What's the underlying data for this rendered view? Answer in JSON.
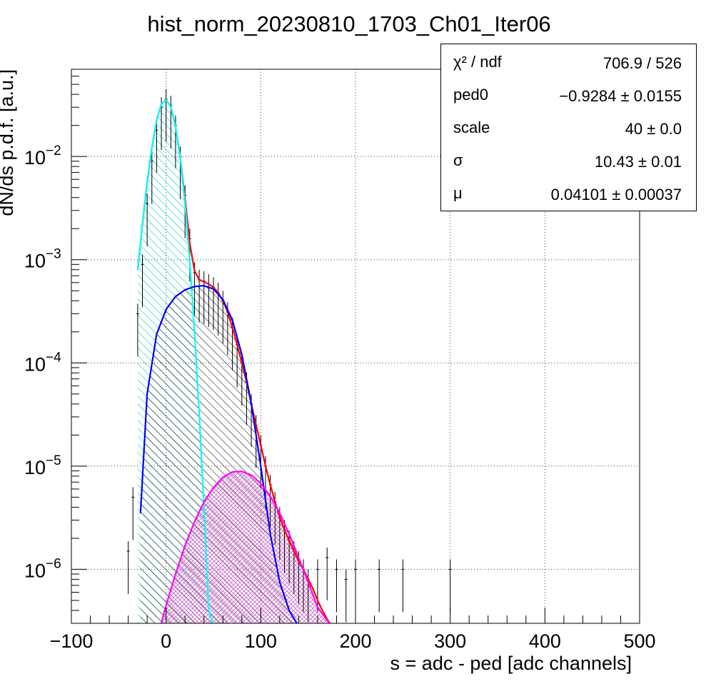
{
  "chart_data": {
    "type": "line",
    "title": "hist_norm_20230810_1703_Ch01_Iter06",
    "xlabel": "s = adc - ped [adc channels]",
    "ylabel": "dN/ds p.d.f. [a.u.]",
    "xlim": [
      -100,
      500
    ],
    "ylim": [
      3e-07,
      0.07
    ],
    "y_scale": "log",
    "grid": true,
    "x_ticks": [
      {
        "value": -100,
        "label": "−100"
      },
      {
        "value": 0,
        "label": "0"
      },
      {
        "value": 100,
        "label": "100"
      },
      {
        "value": 200,
        "label": "200"
      },
      {
        "value": 300,
        "label": "300"
      },
      {
        "value": 400,
        "label": "400"
      },
      {
        "value": 500,
        "label": "500"
      }
    ],
    "y_ticks": [
      {
        "value": 0.01,
        "base": "10",
        "exp": "−2"
      },
      {
        "value": 0.001,
        "base": "10",
        "exp": "−3"
      },
      {
        "value": 0.0001,
        "base": "10",
        "exp": "−4"
      },
      {
        "value": 1e-05,
        "base": "10",
        "exp": "−5"
      },
      {
        "value": 1e-06,
        "base": "10",
        "exp": "−6"
      }
    ],
    "fit_parameters": {
      "chi2_ndf": {
        "name": "χ² / ndf",
        "value": "706.9 / 526"
      },
      "ped0": {
        "name": "ped0",
        "value": "−0.9284 ± 0.0155"
      },
      "scale": {
        "name": "scale",
        "value": "40 ± 0.0"
      },
      "sigma": {
        "name": "σ",
        "value": "10.43 ± 0.01"
      },
      "mu": {
        "name": "μ",
        "value": "0.04101 ± 0.00037"
      }
    },
    "series": [
      {
        "color": "#000000",
        "style": "histogram-error-bars",
        "x": [
          -40,
          -35,
          -30,
          -25,
          -20,
          -15,
          -10,
          -5,
          0,
          5,
          10,
          15,
          20,
          25,
          30,
          35,
          40,
          45,
          50,
          55,
          60,
          65,
          70,
          75,
          80,
          85,
          90,
          95,
          100,
          105,
          110,
          115,
          120,
          125,
          130,
          135,
          140,
          145,
          150,
          160,
          170,
          180,
          190,
          200,
          225,
          250,
          300
        ],
        "y": [
          1.5e-06,
          5e-06,
          0.0003,
          0.0009,
          0.0035,
          0.009,
          0.018,
          0.03,
          0.036,
          0.031,
          0.02,
          0.01,
          0.0042,
          0.0016,
          0.00075,
          0.00064,
          0.00062,
          0.00058,
          0.00054,
          0.00048,
          0.0004,
          0.00031,
          0.00022,
          0.00015,
          0.0001,
          6.5e-05,
          4e-05,
          2.5e-05,
          1.6e-05,
          1e-05,
          6.6e-06,
          4.5e-06,
          3.2e-06,
          2.4e-06,
          1.9e-06,
          1.5e-06,
          1.2e-06,
          1e-06,
          8e-07,
          1e-06,
          1.3e-06,
          1e-06,
          8e-07,
          1e-06,
          1e-06,
          1e-06,
          1e-06
        ]
      },
      {
        "color": "#ff0000",
        "style": "line",
        "x": [
          -30,
          -25,
          -20,
          -15,
          -10,
          -5,
          0,
          5,
          10,
          15,
          20,
          25,
          30,
          35,
          40,
          45,
          50,
          55,
          60,
          65,
          70,
          75,
          80,
          85,
          90,
          95,
          100,
          105,
          110,
          115,
          120,
          125,
          130,
          135,
          140,
          145,
          150,
          155,
          160,
          165,
          170,
          175
        ],
        "y": [
          0.0008,
          0.0022,
          0.0056,
          0.0122,
          0.0225,
          0.0322,
          0.0355,
          0.0302,
          0.0195,
          0.0096,
          0.0039,
          0.00145,
          0.00078,
          0.00064,
          0.00061,
          0.00058,
          0.00054,
          0.00048,
          0.0004,
          0.00031,
          0.00022,
          0.00015,
          0.0001,
          6.5e-05,
          4e-05,
          2.5e-05,
          1.6e-05,
          1e-05,
          6.6e-06,
          4.5e-06,
          3.2e-06,
          2.4e-06,
          1.9e-06,
          1.5e-06,
          1.2e-06,
          1e-06,
          8e-07,
          6.5e-07,
          5e-07,
          4e-07,
          3.3e-07,
          2.8e-07
        ]
      },
      {
        "color": "#00ffff",
        "style": "line-hatched",
        "x": [
          -30,
          -25,
          -20,
          -15,
          -10,
          -5,
          0,
          5,
          10,
          15,
          20,
          25,
          30,
          35,
          40,
          45,
          50
        ],
        "y": [
          0.0008,
          0.0022,
          0.0056,
          0.0122,
          0.0225,
          0.0322,
          0.0355,
          0.0302,
          0.0195,
          0.0095,
          0.0035,
          0.00097,
          0.0002,
          3.2e-05,
          4e-06,
          4e-07,
          2.8e-07
        ]
      },
      {
        "color": "#0000ff",
        "style": "line-hatched",
        "x": [
          -27,
          -20,
          -10,
          0,
          10,
          20,
          30,
          40,
          50,
          60,
          70,
          80,
          90,
          100,
          110,
          120,
          130,
          140
        ],
        "y": [
          3.5e-06,
          5e-05,
          0.00019,
          0.00033,
          0.00044,
          0.00051,
          0.00055,
          0.00056,
          0.00052,
          0.00041,
          0.00026,
          0.00012,
          4e-05,
          1e-05,
          2.2e-06,
          7.5e-07,
          4e-07,
          2.8e-07
        ]
      },
      {
        "color": "#ff00ff",
        "style": "line-hatched",
        "x": [
          -5,
          0,
          10,
          20,
          30,
          40,
          50,
          60,
          70,
          80,
          90,
          100,
          110,
          120,
          130,
          140,
          150,
          160,
          170,
          175
        ],
        "y": [
          3e-07,
          4.5e-07,
          9e-07,
          1.7e-06,
          2.9e-06,
          4.5e-06,
          6.2e-06,
          7.8e-06,
          8.8e-06,
          8.9e-06,
          8.2e-06,
          6.8e-06,
          5.1e-06,
          3.5e-06,
          2.2e-06,
          1.3e-06,
          7.5e-07,
          4.3e-07,
          3.2e-07,
          2.9e-07
        ]
      }
    ]
  }
}
